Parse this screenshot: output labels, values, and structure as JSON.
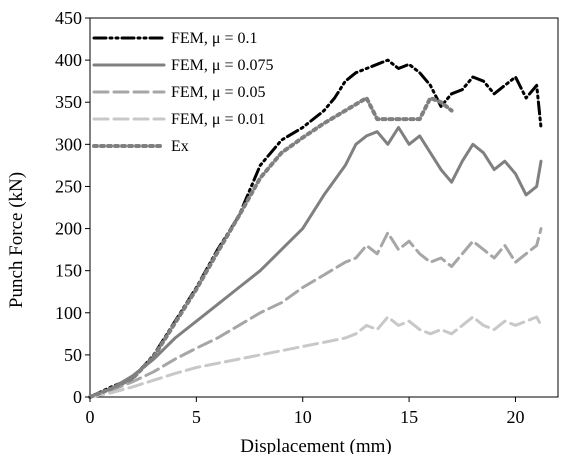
{
  "chart_data": {
    "type": "line",
    "xlabel": "Displacement (mm)",
    "ylabel": "Punch Force (kN)",
    "xlim": [
      0,
      22
    ],
    "ylim": [
      0,
      450
    ],
    "xticks": [
      0,
      5,
      10,
      15,
      20
    ],
    "yticks": [
      0,
      50,
      100,
      150,
      200,
      250,
      300,
      350,
      400,
      450
    ],
    "grid": false,
    "legend_position": "top-left",
    "series": [
      {
        "name": "FEM,  μ = 0.1",
        "color": "#000000",
        "style": "dashdot",
        "x": [
          0,
          1,
          2,
          3,
          4,
          5,
          6,
          7,
          7.5,
          8,
          8.5,
          9,
          10,
          11,
          11.5,
          12,
          12.5,
          13,
          13.5,
          14,
          14.5,
          15,
          15.5,
          16,
          16.5,
          17,
          17.5,
          18,
          18.5,
          19,
          19.5,
          20,
          20.5,
          21,
          21.2
        ],
        "y": [
          0,
          12,
          22,
          50,
          90,
          130,
          175,
          215,
          245,
          275,
          290,
          305,
          320,
          340,
          355,
          375,
          385,
          390,
          395,
          400,
          390,
          395,
          385,
          370,
          345,
          360,
          365,
          380,
          375,
          360,
          370,
          380,
          355,
          370,
          320
        ]
      },
      {
        "name": "FEM,  μ = 0.075",
        "color": "#808080",
        "style": "solid",
        "x": [
          0,
          1,
          2,
          3,
          4,
          5,
          6,
          7,
          8,
          9,
          10,
          11,
          12,
          12.5,
          13,
          13.5,
          14,
          14.5,
          15,
          15.5,
          16,
          16.5,
          17,
          17.5,
          18,
          18.5,
          19,
          19.5,
          20,
          20.5,
          21,
          21.2
        ],
        "y": [
          0,
          10,
          25,
          45,
          70,
          90,
          110,
          130,
          150,
          175,
          200,
          240,
          275,
          300,
          310,
          315,
          300,
          320,
          300,
          310,
          290,
          270,
          255,
          280,
          300,
          290,
          270,
          280,
          265,
          240,
          250,
          280
        ]
      },
      {
        "name": "FEM,  μ = 0.05",
        "color": "#a6a6a6",
        "style": "dashed",
        "x": [
          0,
          1,
          2,
          3,
          4,
          5,
          6,
          7,
          8,
          9,
          10,
          11,
          12,
          12.5,
          13,
          13.5,
          14,
          14.5,
          15,
          15.5,
          16,
          16.5,
          17,
          17.5,
          18,
          18.5,
          19,
          19.5,
          20,
          20.5,
          21,
          21.2
        ],
        "y": [
          0,
          8,
          18,
          30,
          45,
          58,
          70,
          85,
          100,
          112,
          130,
          145,
          160,
          165,
          180,
          170,
          195,
          175,
          185,
          170,
          160,
          165,
          155,
          170,
          185,
          175,
          165,
          180,
          160,
          170,
          180,
          200
        ]
      },
      {
        "name": "FEM,  μ = 0.01",
        "color": "#c8c8c8",
        "style": "dashed",
        "x": [
          0,
          1,
          2,
          3,
          4,
          5,
          6,
          7,
          8,
          9,
          10,
          11,
          12,
          12.5,
          13,
          13.5,
          14,
          14.5,
          15,
          15.5,
          16,
          16.5,
          17,
          17.5,
          18,
          18.5,
          19,
          19.5,
          20,
          20.5,
          21,
          21.2
        ],
        "y": [
          0,
          5,
          12,
          20,
          28,
          35,
          40,
          45,
          50,
          55,
          60,
          65,
          70,
          75,
          85,
          80,
          95,
          85,
          90,
          80,
          75,
          80,
          75,
          85,
          95,
          85,
          80,
          90,
          85,
          90,
          95,
          85
        ]
      },
      {
        "name": "Ex",
        "color": "#808080",
        "style": "dotted",
        "x": [
          0,
          1,
          2,
          3,
          4,
          5,
          6,
          7,
          8,
          9,
          10,
          11,
          12,
          13,
          13.5,
          14,
          14.5,
          15,
          15.5,
          16,
          16.5,
          17
        ],
        "y": [
          0,
          10,
          22,
          48,
          88,
          128,
          172,
          215,
          260,
          290,
          308,
          325,
          340,
          355,
          330,
          330,
          330,
          330,
          330,
          355,
          350,
          340
        ]
      }
    ]
  }
}
